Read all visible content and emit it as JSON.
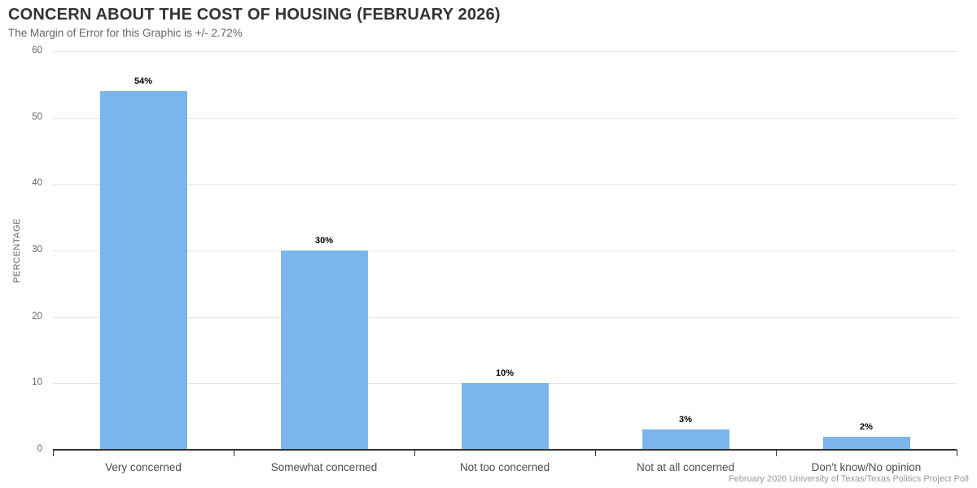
{
  "header": {
    "title": "CONCERN ABOUT THE COST OF HOUSING (FEBRUARY 2026)",
    "subtitle": "The Margin of Error for this Graphic is +/- 2.72%"
  },
  "footer": {
    "credits": "February 2026 University of Texas/Texas Politics Project Poll"
  },
  "chart_data": {
    "type": "bar",
    "title": "CONCERN ABOUT THE COST OF HOUSING (FEBRUARY 2026)",
    "subtitle": "The Margin of Error for this Graphic is +/- 2.72%",
    "categories": [
      "Very concerned",
      "Somewhat concerned",
      "Not too concerned",
      "Not at all concerned",
      "Don't know/No opinion"
    ],
    "values": [
      54,
      30,
      10,
      3,
      2
    ],
    "data_labels": [
      "54%",
      "30%",
      "10%",
      "3%",
      "2%"
    ],
    "xlabel": "",
    "ylabel": "PERCENTAGE",
    "ylim": [
      0,
      60
    ],
    "yticks": [
      0,
      10,
      20,
      30,
      40,
      50,
      60
    ],
    "grid": true,
    "legend_position": "none",
    "bar_color": "#7cb5ec",
    "gridline_color": "#e6e6e6",
    "axis_line_color": "#333333",
    "credits": "February 2026 University of Texas/Texas Politics Project Poll"
  }
}
